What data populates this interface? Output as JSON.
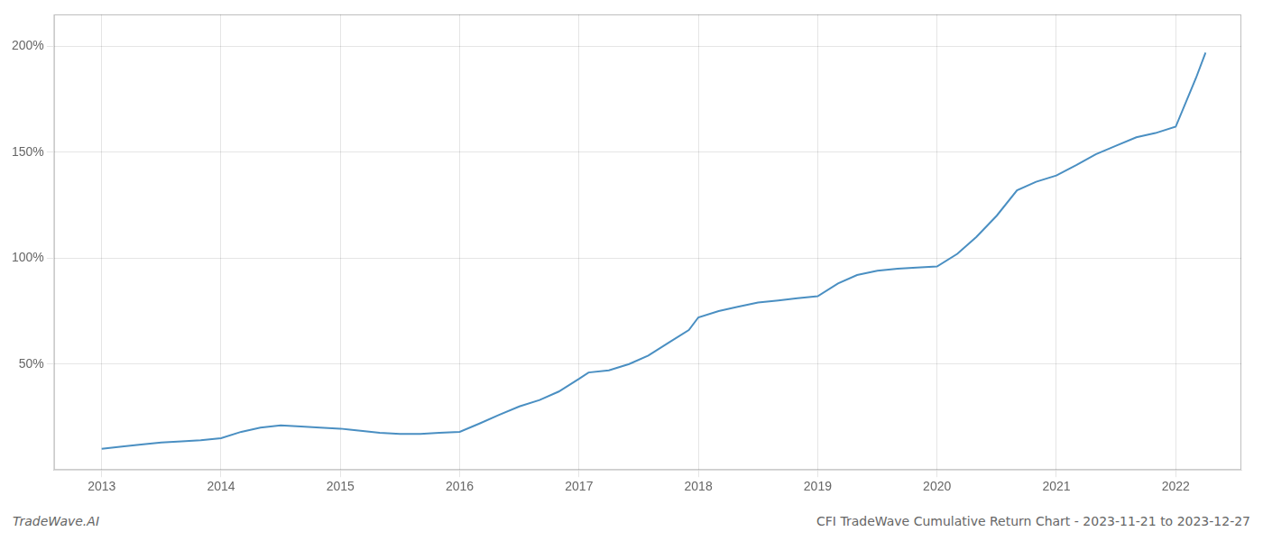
{
  "chart_data": {
    "type": "line",
    "x": [
      2013.0,
      2013.17,
      2013.33,
      2013.5,
      2013.67,
      2013.83,
      2014.0,
      2014.17,
      2014.33,
      2014.5,
      2014.67,
      2014.83,
      2015.0,
      2015.08,
      2015.17,
      2015.33,
      2015.5,
      2015.67,
      2015.83,
      2016.0,
      2016.17,
      2016.33,
      2016.5,
      2016.67,
      2016.83,
      2017.0,
      2017.08,
      2017.25,
      2017.42,
      2017.58,
      2017.75,
      2017.92,
      2018.0,
      2018.17,
      2018.33,
      2018.5,
      2018.67,
      2018.83,
      2019.0,
      2019.17,
      2019.33,
      2019.5,
      2019.67,
      2019.83,
      2020.0,
      2020.17,
      2020.33,
      2020.5,
      2020.67,
      2020.83,
      2021.0,
      2021.17,
      2021.33,
      2021.5,
      2021.67,
      2021.83,
      2022.0,
      2022.17,
      2022.25
    ],
    "values": [
      10,
      11,
      12,
      13,
      13.5,
      14,
      15,
      18,
      20,
      21,
      20.5,
      20,
      19.5,
      19,
      18.5,
      17.5,
      17,
      17,
      17.5,
      18,
      22,
      26,
      30,
      33,
      37,
      43,
      46,
      47,
      50,
      54,
      60,
      66,
      72,
      75,
      77,
      79,
      80,
      81,
      82,
      88,
      92,
      94,
      95,
      95.5,
      96,
      102,
      110,
      120,
      132,
      136,
      139,
      144,
      149,
      153,
      157,
      159,
      162,
      185,
      197
    ],
    "color": "#4a8fc2",
    "xlim": [
      2012.6,
      2022.55
    ],
    "xticks": [
      2013,
      2014,
      2015,
      2016,
      2017,
      2018,
      2019,
      2020,
      2021,
      2022
    ],
    "ylim": [
      0,
      215
    ],
    "yticks": [
      {
        "value": 50,
        "label": "50%"
      },
      {
        "value": 100,
        "label": "100%"
      },
      {
        "value": 150,
        "label": "150%"
      },
      {
        "value": 200,
        "label": "200%"
      }
    ],
    "grid": true,
    "annotations": [
      "TradeWave.AI",
      "CFI TradeWave Cumulative Return Chart - 2023-11-21 to 2023-12-27"
    ]
  }
}
